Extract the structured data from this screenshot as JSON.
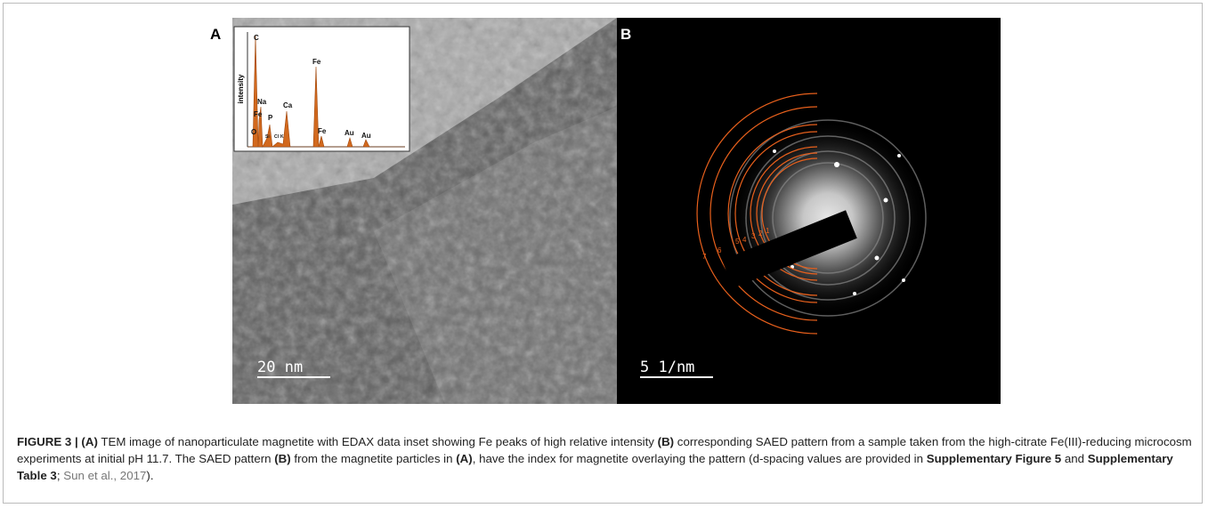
{
  "panels": [
    {
      "label": "A",
      "scale_bar": "20 nm",
      "inset": {
        "y_label": "intensity",
        "peaks": [
          "C",
          "Na",
          "Fe",
          "O",
          "P",
          "Si",
          "Cl",
          "K",
          "Ca",
          "Fe",
          "Fe",
          "Au",
          "Au"
        ]
      }
    },
    {
      "label": "B",
      "scale_bar": "5 1/nm",
      "ring_labels": [
        "1",
        "2",
        "3",
        "4",
        "5",
        "6",
        "7"
      ]
    }
  ],
  "caption": [
    {
      "text": "FIGURE 3 | (A)",
      "style": "bold"
    },
    {
      "text": " TEM image of nanoparticulate magnetite with EDAX data inset showing Fe peaks of high relative intensity ",
      "style": "normal"
    },
    {
      "text": "(B)",
      "style": "bold"
    },
    {
      "text": " corresponding SAED pattern from a sample taken from the high-citrate Fe(III)-reducing microcosm experiments at initial pH 11.7. The SAED pattern ",
      "style": "normal"
    },
    {
      "text": "(B)",
      "style": "bold"
    },
    {
      "text": " from the magnetite particles in ",
      "style": "normal"
    },
    {
      "text": "(A)",
      "style": "bold"
    },
    {
      "text": ", have the index for magnetite overlaying the pattern (d-spacing values are provided in ",
      "style": "normal"
    },
    {
      "text": "Supplementary Figure 5",
      "style": "bold"
    },
    {
      "text": " and ",
      "style": "normal"
    },
    {
      "text": "Supplementary Table 3",
      "style": "bold"
    },
    {
      "text": "; ",
      "style": "normal"
    },
    {
      "text": "Sun et al., 2017",
      "style": "link"
    },
    {
      "text": ").",
      "style": "normal"
    }
  ]
}
